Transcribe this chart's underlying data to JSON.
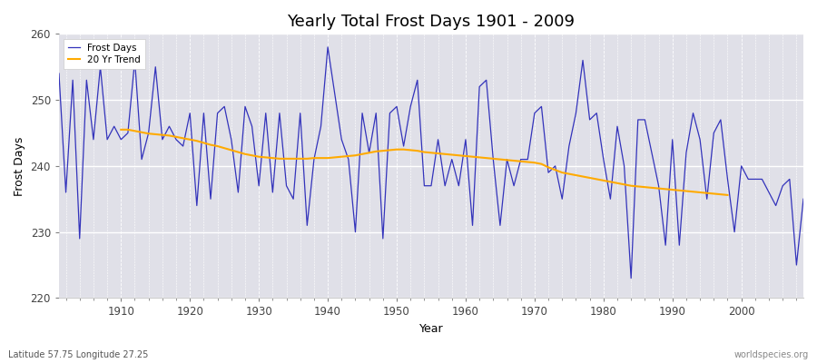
{
  "title": "Yearly Total Frost Days 1901 - 2009",
  "xlabel": "Year",
  "ylabel": "Frost Days",
  "subtitle_left": "Latitude 57.75 Longitude 27.25",
  "subtitle_right": "worldspecies.org",
  "years": [
    1901,
    1902,
    1903,
    1904,
    1905,
    1906,
    1907,
    1908,
    1909,
    1910,
    1911,
    1912,
    1913,
    1914,
    1915,
    1916,
    1917,
    1918,
    1919,
    1920,
    1921,
    1922,
    1923,
    1924,
    1925,
    1926,
    1927,
    1928,
    1929,
    1930,
    1931,
    1932,
    1933,
    1934,
    1935,
    1936,
    1937,
    1938,
    1939,
    1940,
    1941,
    1942,
    1943,
    1944,
    1945,
    1946,
    1947,
    1948,
    1949,
    1950,
    1951,
    1952,
    1953,
    1954,
    1955,
    1956,
    1957,
    1958,
    1959,
    1960,
    1961,
    1962,
    1963,
    1964,
    1965,
    1966,
    1967,
    1968,
    1969,
    1970,
    1971,
    1972,
    1973,
    1974,
    1975,
    1976,
    1977,
    1978,
    1979,
    1980,
    1981,
    1982,
    1983,
    1984,
    1985,
    1986,
    1987,
    1988,
    1989,
    1990,
    1991,
    1992,
    1993,
    1994,
    1995,
    1996,
    1997,
    1998,
    1999,
    2000,
    2001,
    2002,
    2003,
    2004,
    2005,
    2006,
    2007,
    2008,
    2009
  ],
  "frost_days": [
    254,
    236,
    253,
    229,
    253,
    244,
    255,
    244,
    246,
    244,
    245,
    256,
    241,
    245,
    255,
    244,
    246,
    244,
    243,
    248,
    234,
    248,
    235,
    248,
    249,
    244,
    236,
    249,
    246,
    237,
    248,
    236,
    248,
    237,
    235,
    248,
    231,
    241,
    246,
    258,
    251,
    244,
    241,
    230,
    248,
    242,
    248,
    229,
    248,
    249,
    243,
    249,
    253,
    237,
    237,
    244,
    237,
    241,
    237,
    244,
    231,
    252,
    253,
    241,
    231,
    241,
    237,
    241,
    241,
    248,
    249,
    239,
    240,
    235,
    243,
    248,
    256,
    247,
    248,
    241,
    235,
    246,
    240,
    223,
    247,
    247,
    242,
    237,
    228,
    244,
    228,
    242,
    248,
    244,
    235,
    245,
    247,
    238,
    230,
    240,
    238,
    238,
    238,
    236,
    234,
    237,
    238,
    225,
    235
  ],
  "trend_values": [
    null,
    null,
    null,
    null,
    null,
    null,
    null,
    null,
    null,
    245.5,
    245.5,
    245.3,
    245.1,
    244.9,
    244.8,
    244.7,
    244.6,
    244.4,
    244.2,
    244.0,
    243.8,
    243.5,
    243.2,
    243.0,
    242.7,
    242.4,
    242.1,
    241.8,
    241.6,
    241.4,
    241.3,
    241.2,
    241.1,
    241.1,
    241.1,
    241.1,
    241.1,
    241.2,
    241.2,
    241.2,
    241.3,
    241.4,
    241.5,
    241.6,
    241.8,
    242.0,
    242.2,
    242.3,
    242.4,
    242.5,
    242.5,
    242.4,
    242.3,
    242.1,
    242.0,
    241.9,
    241.8,
    241.7,
    241.6,
    241.5,
    241.4,
    241.3,
    241.2,
    241.1,
    241.0,
    240.9,
    240.8,
    240.7,
    240.6,
    240.5,
    240.3,
    239.8,
    239.4,
    239.0,
    238.8,
    238.6,
    238.4,
    238.2,
    238.0,
    237.8,
    237.6,
    237.4,
    237.2,
    237.0,
    236.9,
    236.8,
    236.7,
    236.6,
    236.5,
    236.4,
    236.3,
    236.2,
    236.1,
    236.0,
    235.9,
    235.8,
    235.7,
    235.6,
    null,
    null,
    null,
    null,
    null,
    null,
    null,
    null,
    null,
    null,
    null
  ],
  "line_color": "#3333bb",
  "trend_color": "#ffaa00",
  "bg_color": "#e0e0e8",
  "ylim": [
    220,
    260
  ],
  "xlim": [
    1901,
    2009
  ],
  "yticks": [
    220,
    230,
    240,
    250,
    260
  ],
  "xticks": [
    1910,
    1920,
    1930,
    1940,
    1950,
    1960,
    1970,
    1980,
    1990,
    2000
  ],
  "figsize": [
    9.0,
    4.0
  ],
  "dpi": 100
}
